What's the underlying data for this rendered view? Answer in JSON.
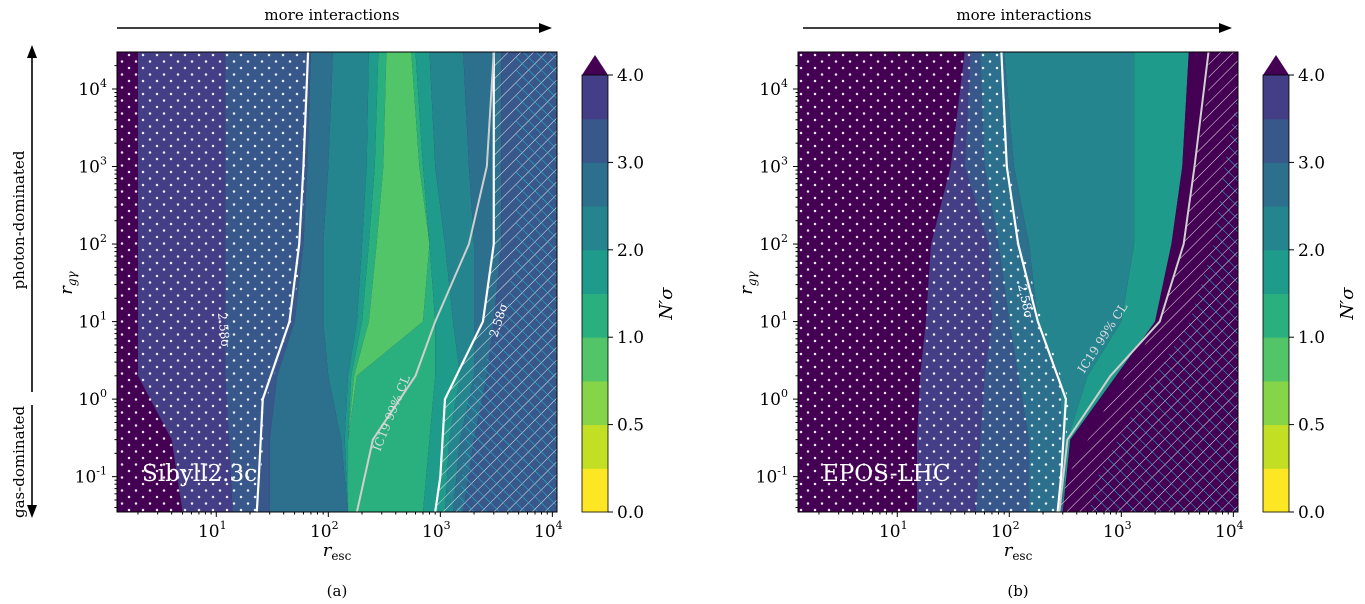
{
  "chart_data": [
    {
      "type": "heatmap",
      "panel_label": "(a)",
      "model_label": "Sibyll2.3c",
      "top_arrow_label": "more interactions",
      "left_arrow_labels": {
        "upper": "photon-dominated",
        "lower": "gas-dominated"
      },
      "xlabel": {
        "base": "r",
        "sub": "esc"
      },
      "ylabel": {
        "base": "r",
        "sub": "gγ"
      },
      "x_scale": "log",
      "y_scale": "log",
      "xlim": [
        1.3,
        11000
      ],
      "ylim": [
        0.035,
        30000
      ],
      "x_ticks": [
        10,
        100,
        1000,
        10000
      ],
      "y_ticks": [
        0.1,
        1,
        10,
        100,
        1000,
        10000
      ],
      "contour_labels": [
        "2.58σ",
        "IC19 99% CL",
        "2.58σ"
      ],
      "colorbar": {
        "label": "N′σ",
        "levels": [
          0,
          0.25,
          0.5,
          0.75,
          1,
          1.5,
          2,
          2.5,
          3,
          3.5,
          4
        ],
        "tick_values": [
          0,
          0.5,
          1,
          2,
          3,
          4
        ],
        "tick_labels": [
          "0.0",
          "0.5",
          "1.0",
          "2.0",
          "3.0",
          "4.0"
        ],
        "extend": "max"
      },
      "regions": [
        {
          "x_left": [
            0.8,
            0.8,
            0.8,
            0.8,
            0.8,
            0.8,
            0.8
          ],
          "x_right": [
            5,
            4,
            2,
            2,
            2,
            2,
            2
          ],
          "level": 4.5
        },
        {
          "x_left": [
            5,
            4,
            2,
            2,
            2,
            2,
            2
          ],
          "x_right": [
            14,
            13,
            12,
            12,
            12,
            12,
            12
          ],
          "level": 3.8
        },
        {
          "x_left": [
            14,
            13,
            12,
            12,
            12,
            12,
            12
          ],
          "x_right": [
            30,
            30,
            35,
            50,
            60,
            65,
            70
          ],
          "level": 3.3
        },
        {
          "x_left": [
            30,
            30,
            35,
            50,
            60,
            65,
            70
          ],
          "x_right": [
            150,
            130,
            100,
            90,
            90,
            100,
            110
          ],
          "level": 2.8
        },
        {
          "x_left": [
            150,
            130,
            100,
            90,
            90,
            100,
            110
          ],
          "x_right": [
            150,
            140,
            150,
            180,
            200,
            220,
            230
          ],
          "level": 2.3
        },
        {
          "x_left": [
            150,
            140,
            150,
            180,
            200,
            220,
            230
          ],
          "x_right": [
            150,
            150,
            160,
            200,
            230,
            260,
            280
          ],
          "level": 1.7
        },
        {
          "x_left": [
            150,
            150,
            160,
            200,
            230,
            260,
            280
          ],
          "x_right": [
            150,
            150,
            170,
            230,
            270,
            310,
            330
          ],
          "level": 1.2
        },
        {
          "x_left": [
            150,
            150,
            170,
            230,
            270,
            310,
            330
          ],
          "x_right": [
            150,
            150,
            180,
            700,
            800,
            650,
            550
          ],
          "level": 0.9
        },
        {
          "x_left": [
            150,
            150,
            180,
            700,
            800,
            650,
            550
          ],
          "x_right": [
            700,
            800,
            900,
            900,
            800,
            700,
            600
          ],
          "level": 1.2
        },
        {
          "x_left": [
            700,
            800,
            900,
            900,
            800,
            700,
            600
          ],
          "x_right": [
            1100,
            1200,
            1500,
            1300,
            1100,
            900,
            800
          ],
          "level": 1.7
        },
        {
          "x_left": [
            1100,
            1200,
            1500,
            1300,
            1100,
            900,
            800
          ],
          "x_right": [
            1300,
            1500,
            2000,
            2000,
            2000,
            1800,
            1600
          ],
          "level": 2.3
        },
        {
          "x_left": [
            1300,
            1500,
            2000,
            2000,
            2000,
            1800,
            1600
          ],
          "x_right": [
            1600,
            2000,
            2600,
            3000,
            3500,
            3500,
            3500
          ],
          "level": 2.8
        },
        {
          "x_left": [
            1600,
            2000,
            2600,
            3000,
            3500,
            3500,
            3500
          ],
          "x_right": [
            20000,
            20000,
            20000,
            20000,
            20000,
            20000,
            20000
          ],
          "level": 3.3
        }
      ],
      "sigma_curves": [
        {
          "x": [
            23,
            24,
            26,
            45,
            55,
            60,
            64,
            66
          ],
          "y": [
            0.035,
            0.1,
            1,
            10,
            100,
            1000,
            10000,
            30000
          ]
        },
        {
          "x": [
            900,
            1000,
            1100,
            2400,
            3000,
            3000,
            3000,
            3000
          ],
          "y": [
            0.035,
            0.1,
            1,
            10,
            100,
            1000,
            10000,
            30000
          ]
        }
      ],
      "cl_curve": {
        "x": [
          180,
          250,
          600,
          900,
          1800,
          2600,
          3000
        ],
        "y": [
          0.035,
          0.3,
          2,
          10,
          100,
          1000,
          30000
        ]
      },
      "masks": {
        "dots_xmax": [
          24,
          25,
          28,
          48,
          58,
          62,
          66,
          68
        ],
        "hatch_xmin": [
          900,
          1000,
          1100,
          2400,
          3000,
          3000,
          3000,
          3000
        ]
      }
    },
    {
      "type": "heatmap",
      "panel_label": "(b)",
      "model_label": "EPOS-LHC",
      "top_arrow_label": "more interactions",
      "xlabel": {
        "base": "r",
        "sub": "esc"
      },
      "ylabel": {
        "base": "r",
        "sub": "gγ"
      },
      "x_scale": "log",
      "y_scale": "log",
      "xlim": [
        1.3,
        11000
      ],
      "ylim": [
        0.035,
        30000
      ],
      "x_ticks": [
        10,
        100,
        1000,
        10000
      ],
      "y_ticks": [
        0.1,
        1,
        10,
        100,
        1000,
        10000
      ],
      "contour_labels": [
        "2.58σ",
        "IC19 99% CL"
      ],
      "colorbar": {
        "label": "N′σ",
        "levels": [
          0,
          0.25,
          0.5,
          0.75,
          1,
          1.5,
          2,
          2.5,
          3,
          3.5,
          4
        ],
        "tick_values": [
          0,
          0.5,
          1,
          2,
          3,
          4
        ],
        "tick_labels": [
          "0.0",
          "0.5",
          "1.0",
          "2.0",
          "3.0",
          "4.0"
        ],
        "extend": "max"
      },
      "regions": [
        {
          "x_left": [
            0.8,
            0.8,
            0.8,
            0.8,
            0.8,
            0.8,
            0.8
          ],
          "x_right": [
            15,
            15,
            16,
            18,
            20,
            30,
            40
          ],
          "level": 4.5
        },
        {
          "x_left": [
            15,
            15,
            16,
            18,
            20,
            30,
            40
          ],
          "x_right": [
            50,
            55,
            60,
            70,
            65,
            40,
            45
          ],
          "level": 3.8
        },
        {
          "x_left": [
            50,
            55,
            60,
            70,
            65,
            40,
            45
          ],
          "x_right": [
            150,
            150,
            120,
            100,
            80,
            60,
            55
          ],
          "level": 3.3
        },
        {
          "x_left": [
            150,
            150,
            120,
            100,
            80,
            60,
            55
          ],
          "x_right": [
            300,
            300,
            280,
            180,
            150,
            110,
            90
          ],
          "level": 2.8
        },
        {
          "x_left": [
            300,
            300,
            280,
            180,
            150,
            110,
            90
          ],
          "x_right": [
            300,
            330,
            500,
            1000,
            1300,
            1300,
            1300
          ],
          "level": 2.3
        },
        {
          "x_left": [
            300,
            330,
            500,
            1000,
            1300,
            1300,
            1300
          ],
          "x_right": [
            300,
            350,
            900,
            2000,
            2800,
            3500,
            4000
          ],
          "level": 1.7
        },
        {
          "x_left": [
            300,
            350,
            900,
            2000,
            2800,
            3500,
            4000
          ],
          "x_right": [
            20000,
            20000,
            20000,
            20000,
            20000,
            20000,
            20000
          ],
          "level": 4.5
        }
      ],
      "sigma_curves": [
        {
          "x": [
            270,
            290,
            320,
            180,
            120,
            95,
            88,
            85
          ],
          "y": [
            0.035,
            0.1,
            1,
            10,
            100,
            1000,
            10000,
            30000
          ]
        }
      ],
      "cl_curve": {
        "x": [
          280,
          330,
          800,
          2200,
          3600,
          4500,
          6000
        ],
        "y": [
          0.035,
          0.3,
          2,
          10,
          100,
          1000,
          30000
        ]
      },
      "masks": {
        "dots_xmax": [
          290,
          310,
          340,
          200,
          130,
          100,
          90,
          87
        ],
        "hatch_xmin": [
          280,
          330,
          800,
          2200,
          3600,
          4500,
          6000,
          6000
        ]
      }
    }
  ]
}
